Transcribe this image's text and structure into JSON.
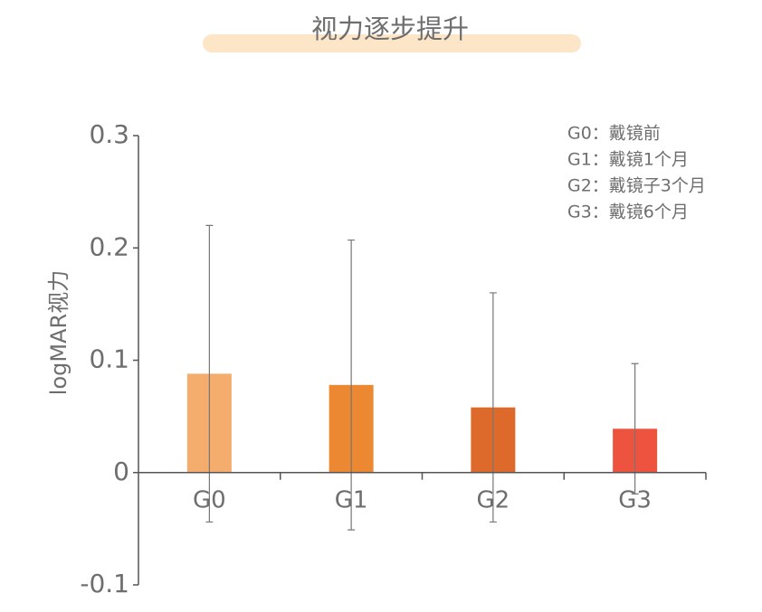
{
  "chart_data": {
    "type": "bar",
    "title": "视力逐步提升",
    "y_label": "logMAR视力",
    "categories": [
      "G0",
      "G1",
      "G2",
      "G3"
    ],
    "values": [
      0.088,
      0.078,
      0.058,
      0.039
    ],
    "errors": [
      0.132,
      0.129,
      0.102,
      0.058
    ],
    "colors": [
      "#f5ad6e",
      "#ec8831",
      "#dd6a2b",
      "#ee5340"
    ],
    "ylim": [
      -0.1,
      0.3
    ],
    "yticks": [
      0.3,
      0.2,
      0.1,
      0,
      -0.1
    ],
    "legend": [
      "G0：戴镜前",
      "G1：戴镜1个月",
      "G2：戴镜子3个月",
      "G3：戴镜6个月"
    ]
  }
}
